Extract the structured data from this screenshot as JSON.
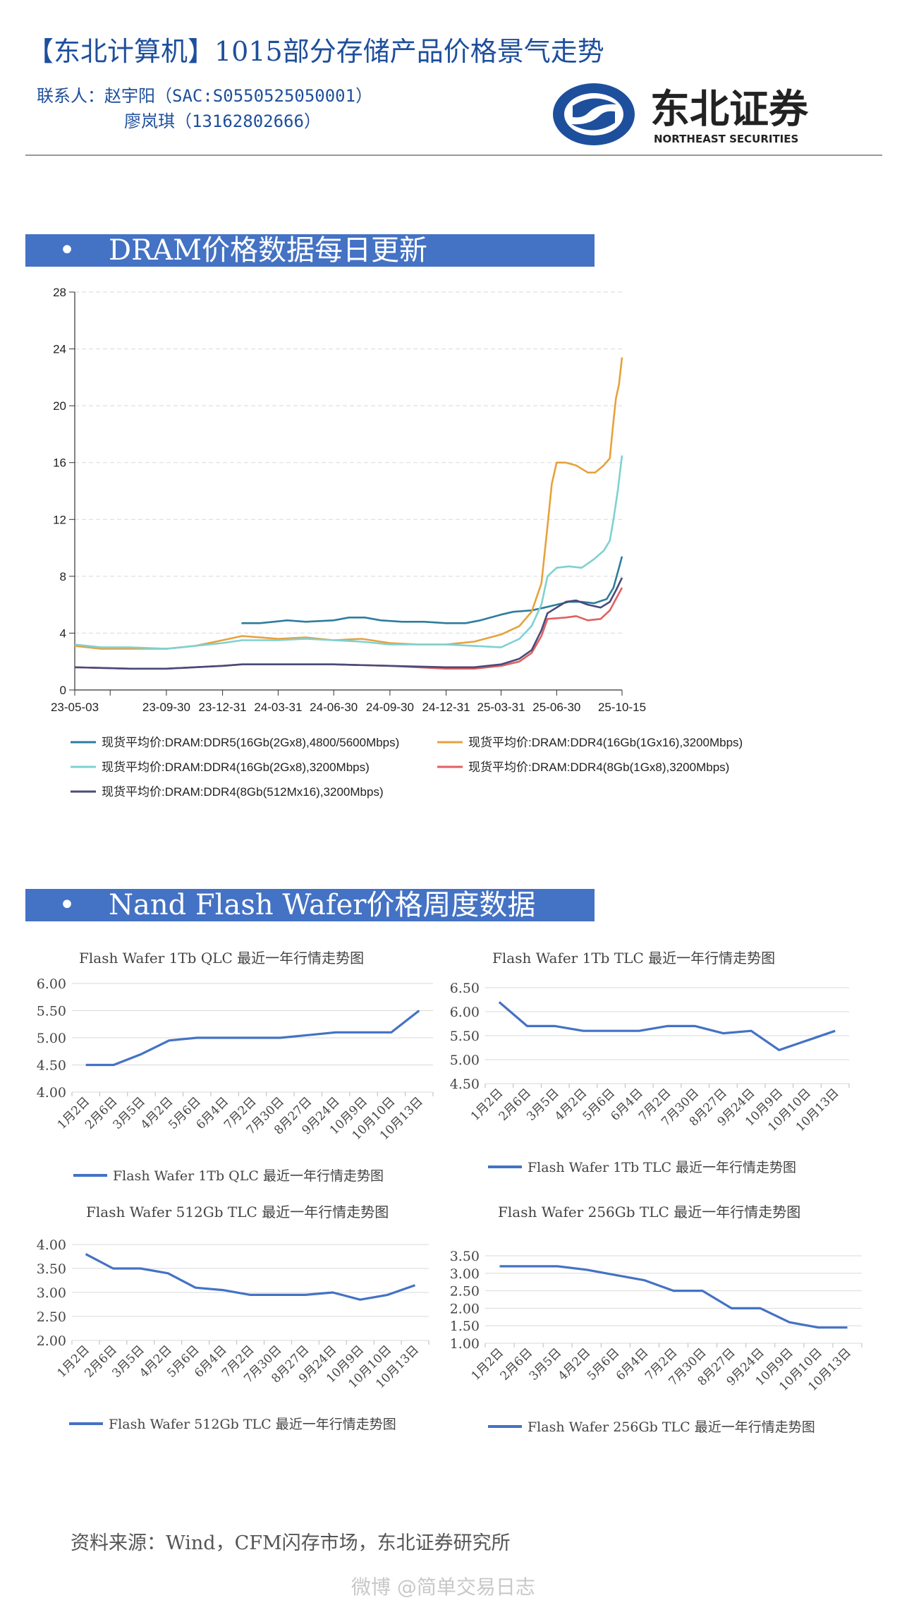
{
  "header": {
    "title": "【东北计算机】1015部分存储产品价格景气走势",
    "contact_line1": "联系人：赵宇阳（SAC:S0550525050001）",
    "contact_line2": "廖岚琪（13162802666）",
    "logo_cn": "东北证券",
    "logo_en": "NORTHEAST SECURITIES"
  },
  "sections": {
    "dram_banner": "DRAM价格数据每日更新",
    "bullet": "•",
    "nand_banner": "Nand Flash Wafer价格周度数据"
  },
  "footer": {
    "source": "资料来源：Wind，CFM闪存市场，东北证券研究所",
    "watermark": "微博 @简单交易日志"
  },
  "colors": {
    "brand_blue": "#1e4f9c",
    "banner_blue": "#4472c4",
    "ddr5": "#2e7d9c",
    "ddr4_1gx16": "#e6a23c",
    "ddr4_2gx8": "#7fd1d1",
    "ddr4_8gb_1gx8": "#e06060",
    "ddr4_8gb_512mx16": "#4a4a7a",
    "flash_line": "#4472c4"
  },
  "chart_data": [
    {
      "type": "line",
      "title": "",
      "xlabel": "",
      "ylabel": "",
      "x_ticks": [
        "23-05-03",
        "23-09-30",
        "23-12-31",
        "24-03-31",
        "24-06-30",
        "24-09-30",
        "24-12-31",
        "25-03-31",
        "25-06-30",
        "25-10-15"
      ],
      "y_ticks": [
        0,
        4,
        8,
        12,
        16,
        20,
        24,
        28
      ],
      "ylim": [
        0,
        28
      ],
      "grid": "horizontal-dashed",
      "legend": "bottom",
      "series": [
        {
          "name": "现货平均价:DRAM:DDR5(16Gb(2Gx8),4800/5600Mbps)",
          "color": "#2e7d9c",
          "points": [
            [
              "2024-01-31",
              4.7
            ],
            [
              "2024-03-01",
              4.7
            ],
            [
              "2024-04-15",
              4.9
            ],
            [
              "2024-05-15",
              4.8
            ],
            [
              "2024-06-30",
              4.9
            ],
            [
              "2024-07-25",
              5.1
            ],
            [
              "2024-08-20",
              5.1
            ],
            [
              "2024-09-15",
              4.9
            ],
            [
              "2024-10-20",
              4.8
            ],
            [
              "2024-11-25",
              4.8
            ],
            [
              "2024-12-31",
              4.7
            ],
            [
              "2025-02-01",
              4.7
            ],
            [
              "2025-02-25",
              4.9
            ],
            [
              "2025-03-31",
              5.3
            ],
            [
              "2025-04-20",
              5.5
            ],
            [
              "2025-05-20",
              5.6
            ],
            [
              "2025-06-10",
              5.8
            ],
            [
              "2025-06-30",
              6.0
            ],
            [
              "2025-07-20",
              6.2
            ],
            [
              "2025-08-10",
              6.2
            ],
            [
              "2025-08-30",
              6.1
            ],
            [
              "2025-09-20",
              6.4
            ],
            [
              "2025-10-01",
              7.2
            ],
            [
              "2025-10-10",
              8.6
            ],
            [
              "2025-10-15",
              9.4
            ]
          ]
        },
        {
          "name": "现货平均价:DRAM:DDR4(16Gb(1Gx16),3200Mbps)",
          "color": "#e6a23c",
          "points": [
            [
              "2023-05-03",
              3.1
            ],
            [
              "2023-06-15",
              2.9
            ],
            [
              "2023-08-01",
              2.9
            ],
            [
              "2023-09-30",
              2.9
            ],
            [
              "2023-11-15",
              3.1
            ],
            [
              "2023-12-31",
              3.5
            ],
            [
              "2024-02-01",
              3.8
            ],
            [
              "2024-03-31",
              3.6
            ],
            [
              "2024-05-15",
              3.7
            ],
            [
              "2024-06-30",
              3.5
            ],
            [
              "2024-08-15",
              3.6
            ],
            [
              "2024-09-30",
              3.3
            ],
            [
              "2024-11-15",
              3.2
            ],
            [
              "2024-12-31",
              3.2
            ],
            [
              "2025-02-15",
              3.4
            ],
            [
              "2025-03-31",
              3.9
            ],
            [
              "2025-04-30",
              4.5
            ],
            [
              "2025-05-20",
              5.5
            ],
            [
              "2025-06-05",
              7.5
            ],
            [
              "2025-06-15",
              11.5
            ],
            [
              "2025-06-22",
              14.5
            ],
            [
              "2025-06-30",
              16.0
            ],
            [
              "2025-07-15",
              16.0
            ],
            [
              "2025-08-01",
              15.8
            ],
            [
              "2025-08-20",
              15.3
            ],
            [
              "2025-09-01",
              15.3
            ],
            [
              "2025-09-15",
              15.8
            ],
            [
              "2025-09-25",
              16.3
            ],
            [
              "2025-09-30",
              18.5
            ],
            [
              "2025-10-05",
              20.5
            ],
            [
              "2025-10-10",
              21.5
            ],
            [
              "2025-10-15",
              23.4
            ]
          ]
        },
        {
          "name": "现货平均价:DRAM:DDR4(16Gb(2Gx8),3200Mbps)",
          "color": "#7fd1d1",
          "points": [
            [
              "2023-05-03",
              3.2
            ],
            [
              "2023-06-15",
              3.0
            ],
            [
              "2023-08-01",
              3.0
            ],
            [
              "2023-09-30",
              2.9
            ],
            [
              "2023-11-15",
              3.1
            ],
            [
              "2023-12-31",
              3.3
            ],
            [
              "2024-02-01",
              3.5
            ],
            [
              "2024-03-31",
              3.5
            ],
            [
              "2024-05-15",
              3.6
            ],
            [
              "2024-06-30",
              3.5
            ],
            [
              "2024-08-15",
              3.4
            ],
            [
              "2024-09-30",
              3.2
            ],
            [
              "2024-11-15",
              3.2
            ],
            [
              "2024-12-31",
              3.2
            ],
            [
              "2025-02-15",
              3.1
            ],
            [
              "2025-03-31",
              3.0
            ],
            [
              "2025-04-30",
              3.6
            ],
            [
              "2025-05-20",
              4.5
            ],
            [
              "2025-06-05",
              6.0
            ],
            [
              "2025-06-15",
              8.0
            ],
            [
              "2025-06-30",
              8.6
            ],
            [
              "2025-07-20",
              8.7
            ],
            [
              "2025-08-10",
              8.6
            ],
            [
              "2025-08-30",
              9.2
            ],
            [
              "2025-09-15",
              9.8
            ],
            [
              "2025-09-25",
              10.5
            ],
            [
              "2025-10-01",
              12.0
            ],
            [
              "2025-10-08",
              14.0
            ],
            [
              "2025-10-15",
              16.5
            ]
          ]
        },
        {
          "name": "现货平均价:DRAM:DDR4(8Gb(1Gx8),3200Mbps)",
          "color": "#e06060",
          "points": [
            [
              "2023-05-03",
              1.6
            ],
            [
              "2023-08-01",
              1.5
            ],
            [
              "2023-09-30",
              1.5
            ],
            [
              "2023-12-31",
              1.7
            ],
            [
              "2024-02-01",
              1.8
            ],
            [
              "2024-03-31",
              1.8
            ],
            [
              "2024-06-30",
              1.8
            ],
            [
              "2024-09-30",
              1.7
            ],
            [
              "2024-12-31",
              1.5
            ],
            [
              "2025-02-15",
              1.5
            ],
            [
              "2025-03-31",
              1.7
            ],
            [
              "2025-04-30",
              2.0
            ],
            [
              "2025-05-20",
              2.6
            ],
            [
              "2025-06-05",
              3.8
            ],
            [
              "2025-06-15",
              5.0
            ],
            [
              "2025-07-15",
              5.1
            ],
            [
              "2025-08-01",
              5.2
            ],
            [
              "2025-08-20",
              4.9
            ],
            [
              "2025-09-10",
              5.0
            ],
            [
              "2025-09-25",
              5.6
            ],
            [
              "2025-10-05",
              6.4
            ],
            [
              "2025-10-15",
              7.2
            ]
          ]
        },
        {
          "name": "现货平均价:DRAM:DDR4(8Gb(512Mx16),3200Mbps)",
          "color": "#4a4a7a",
          "points": [
            [
              "2023-05-03",
              1.6
            ],
            [
              "2023-08-01",
              1.5
            ],
            [
              "2023-09-30",
              1.5
            ],
            [
              "2023-12-31",
              1.7
            ],
            [
              "2024-02-01",
              1.8
            ],
            [
              "2024-03-31",
              1.8
            ],
            [
              "2024-06-30",
              1.8
            ],
            [
              "2024-09-30",
              1.7
            ],
            [
              "2024-12-31",
              1.6
            ],
            [
              "2025-02-15",
              1.6
            ],
            [
              "2025-03-31",
              1.8
            ],
            [
              "2025-04-30",
              2.2
            ],
            [
              "2025-05-20",
              2.8
            ],
            [
              "2025-06-05",
              4.2
            ],
            [
              "2025-06-15",
              5.4
            ],
            [
              "2025-07-15",
              6.2
            ],
            [
              "2025-08-01",
              6.3
            ],
            [
              "2025-08-20",
              6.0
            ],
            [
              "2025-09-10",
              5.8
            ],
            [
              "2025-09-25",
              6.2
            ],
            [
              "2025-10-05",
              7.0
            ],
            [
              "2025-10-15",
              7.9
            ]
          ]
        }
      ]
    },
    {
      "type": "line",
      "title": "Flash Wafer 1Tb QLC 最近一年行情走势图",
      "categories": [
        "1月2日",
        "2月6日",
        "3月5日",
        "4月2日",
        "5月6日",
        "6月4日",
        "7月2日",
        "7月30日",
        "8月27日",
        "9月24日",
        "10月9日",
        "10月10日",
        "10月13日"
      ],
      "y_ticks": [
        "4.00",
        "4.50",
        "5.00",
        "5.50",
        "6.00"
      ],
      "ylim": [
        4.0,
        6.0
      ],
      "legend": "bottom",
      "series": [
        {
          "name": "Flash Wafer 1Tb QLC 最近一年行情走势图",
          "values": [
            4.5,
            4.5,
            4.7,
            4.95,
            5.0,
            5.0,
            5.0,
            5.0,
            5.05,
            5.1,
            5.1,
            5.1,
            5.5
          ]
        }
      ]
    },
    {
      "type": "line",
      "title": "Flash Wafer 1Tb TLC 最近一年行情走势图",
      "categories": [
        "1月2日",
        "2月6日",
        "3月5日",
        "4月2日",
        "5月6日",
        "6月4日",
        "7月2日",
        "7月30日",
        "8月27日",
        "9月24日",
        "10月9日",
        "10月10日",
        "10月13日"
      ],
      "y_ticks": [
        "4.50",
        "5.00",
        "5.50",
        "6.00",
        "6.50"
      ],
      "ylim": [
        4.5,
        6.5
      ],
      "legend": "bottom",
      "series": [
        {
          "name": "Flash Wafer 1Tb TLC 最近一年行情走势图",
          "values": [
            6.2,
            5.7,
            5.7,
            5.6,
            5.6,
            5.6,
            5.7,
            5.7,
            5.55,
            5.6,
            5.2,
            5.4,
            5.6
          ]
        }
      ]
    },
    {
      "type": "line",
      "title": "Flash Wafer 512Gb TLC 最近一年行情走势图",
      "categories": [
        "1月2日",
        "2月6日",
        "3月5日",
        "4月2日",
        "5月6日",
        "6月4日",
        "7月2日",
        "7月30日",
        "8月27日",
        "9月24日",
        "10月9日",
        "10月10日",
        "10月13日"
      ],
      "y_ticks": [
        "2.00",
        "2.50",
        "3.00",
        "3.50",
        "4.00"
      ],
      "ylim": [
        2.0,
        4.0
      ],
      "legend": "bottom",
      "series": [
        {
          "name": "Flash Wafer 512Gb TLC 最近一年行情走势图",
          "values": [
            3.8,
            3.5,
            3.5,
            3.4,
            3.1,
            3.05,
            2.95,
            2.95,
            2.95,
            3.0,
            2.85,
            2.95,
            3.15
          ]
        }
      ]
    },
    {
      "type": "line",
      "title": "Flash Wafer 256Gb TLC 最近一年行情走势图",
      "categories": [
        "1月2日",
        "2月6日",
        "3月5日",
        "4月2日",
        "5月6日",
        "6月4日",
        "7月2日",
        "7月30日",
        "8月27日",
        "9月24日",
        "10月9日",
        "10月10日",
        "10月13日"
      ],
      "y_ticks": [
        "1.00",
        "1.50",
        "2.00",
        "2.50",
        "3.00",
        "3.50"
      ],
      "ylim": [
        1.0,
        3.5
      ],
      "legend": "bottom",
      "series": [
        {
          "name": "Flash Wafer 256Gb TLC 最近一年行情走势图",
          "values": [
            3.2,
            3.2,
            3.2,
            3.1,
            2.95,
            2.8,
            2.5,
            2.5,
            2.0,
            2.0,
            1.6,
            1.45,
            1.45
          ]
        }
      ]
    }
  ]
}
